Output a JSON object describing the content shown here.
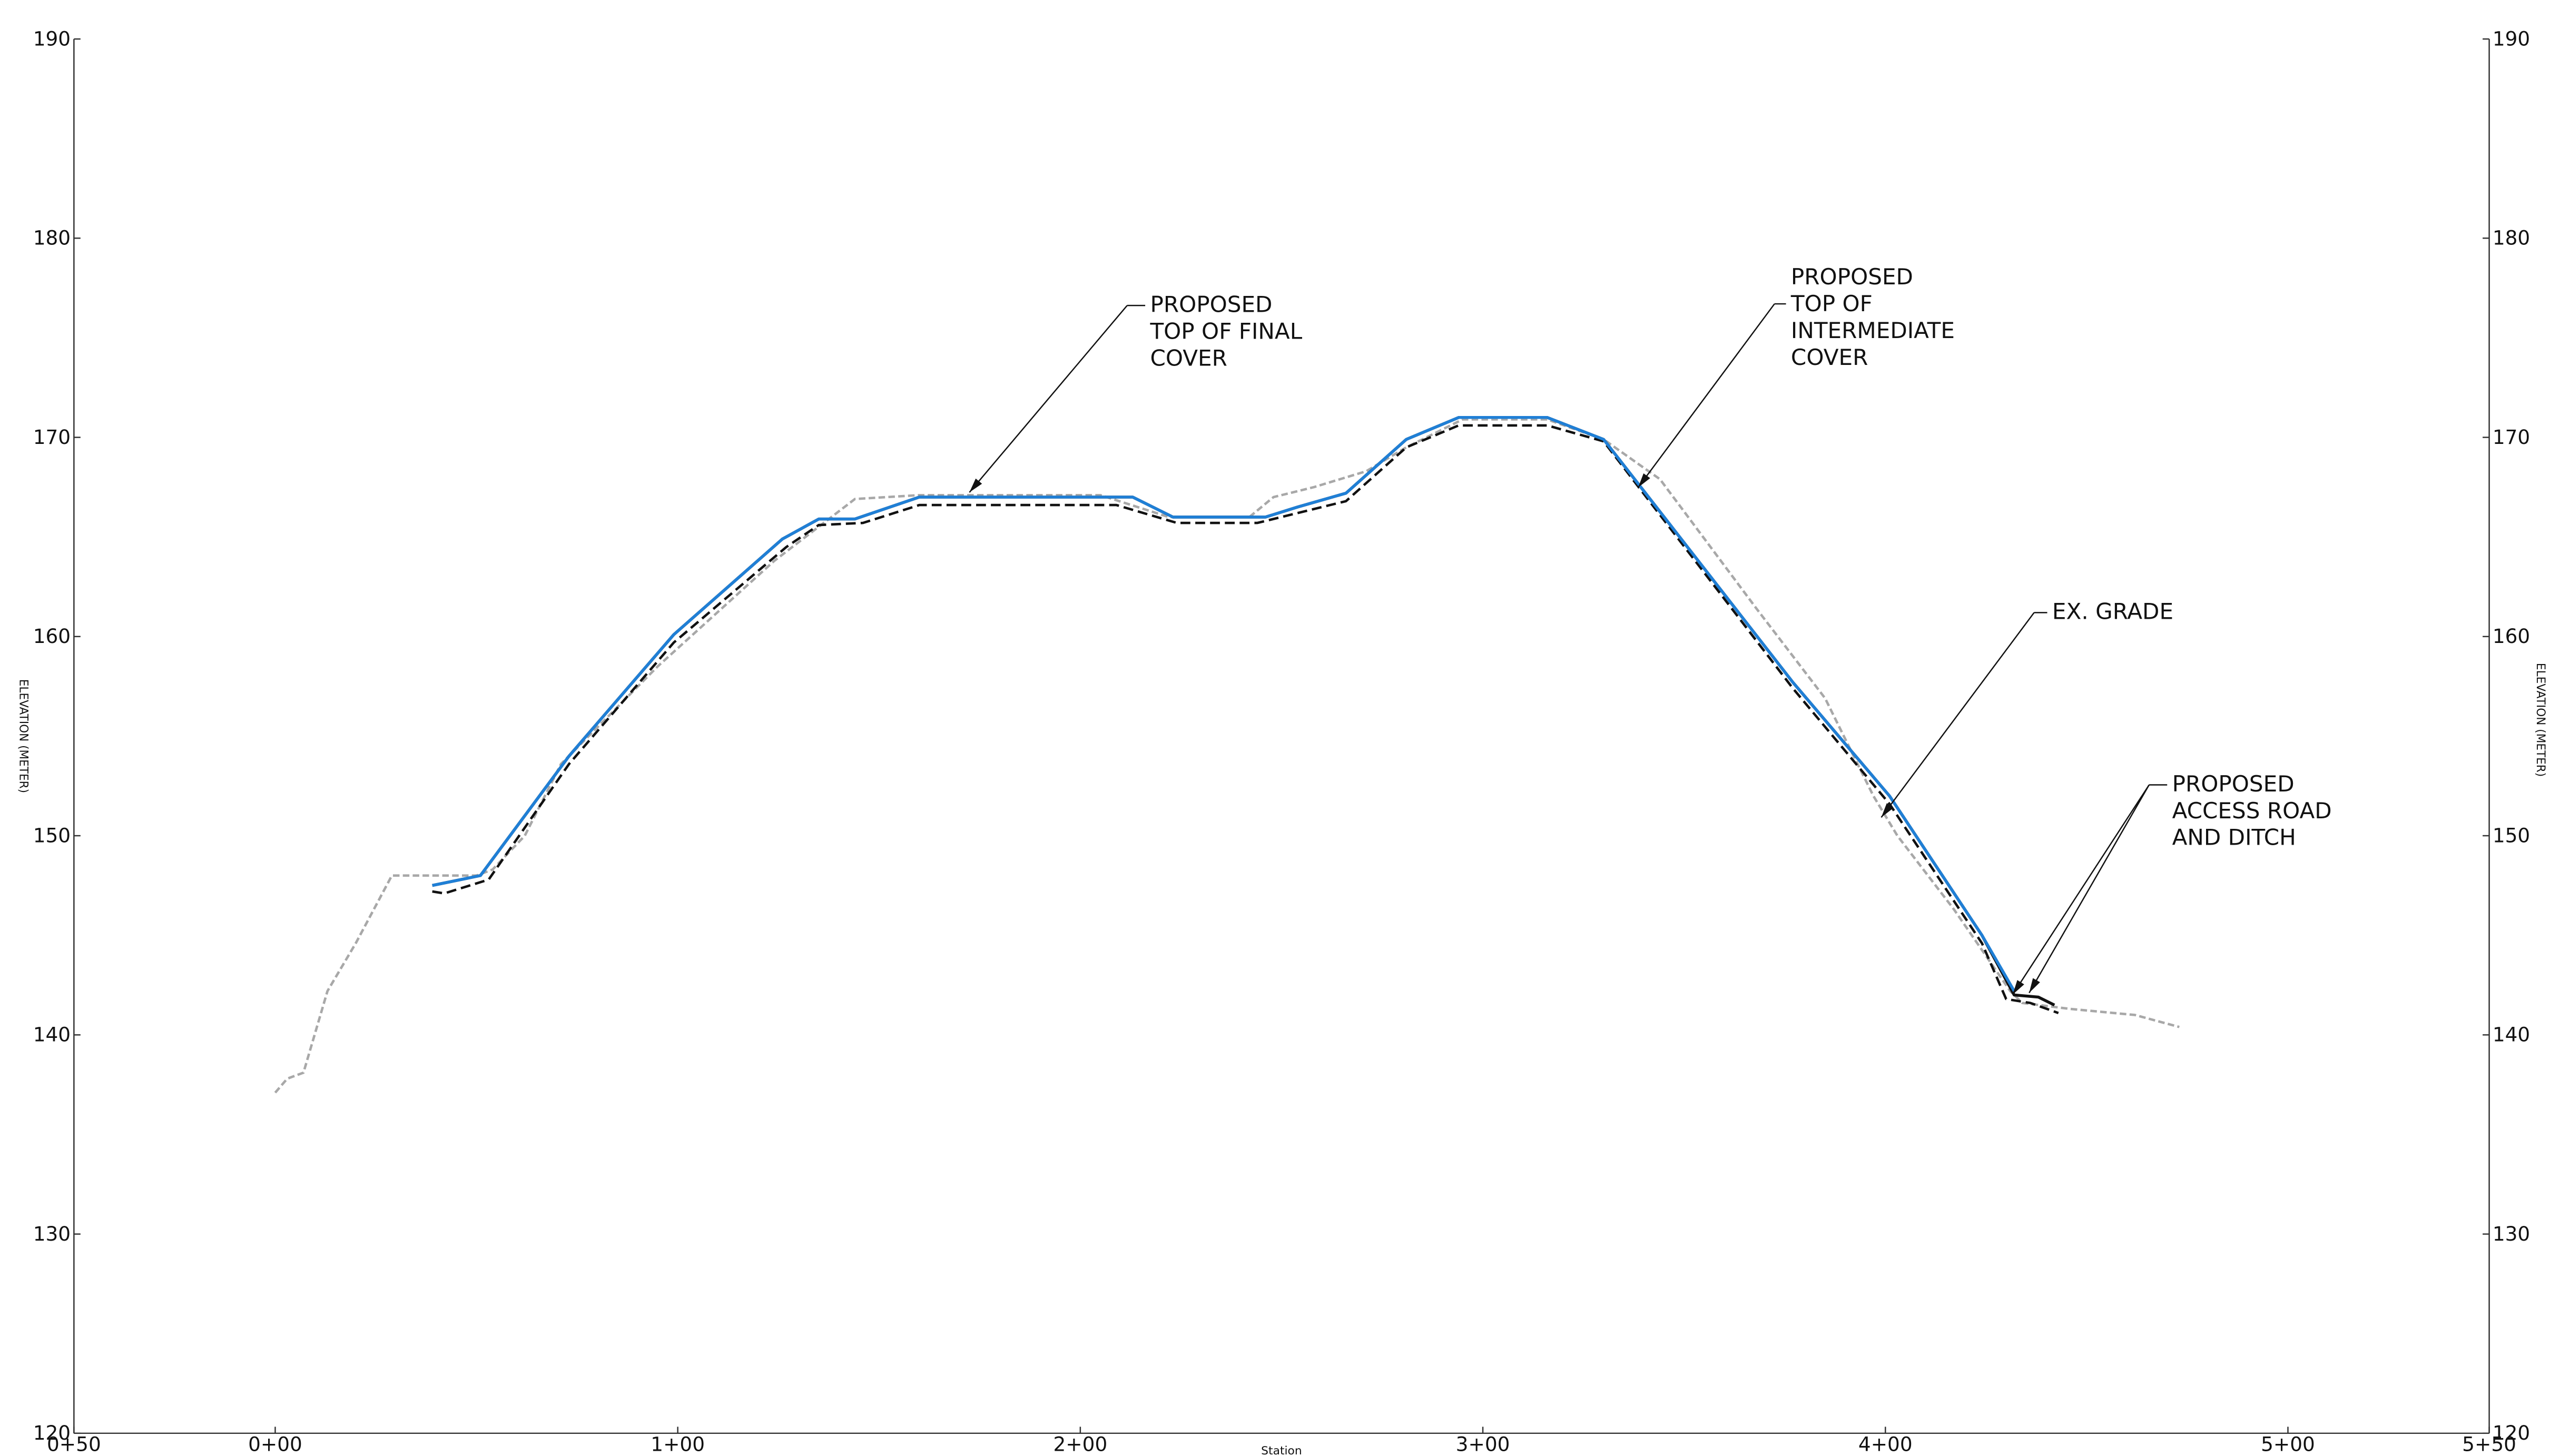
{
  "chart_data": {
    "type": "line",
    "xlabel": "Station",
    "ylabel": "ELEVATION (METER)",
    "y2label": "ELEVATION (METER)",
    "xlim": [
      -50,
      550
    ],
    "xticks": [
      {
        "value": -50,
        "label": "0+50"
      },
      {
        "value": 0,
        "label": "0+00"
      },
      {
        "value": 100,
        "label": "1+00"
      },
      {
        "value": 200,
        "label": "2+00"
      },
      {
        "value": 300,
        "label": "3+00"
      },
      {
        "value": 400,
        "label": "4+00"
      },
      {
        "value": 500,
        "label": "5+00"
      },
      {
        "value": 550,
        "label": "5+50"
      }
    ],
    "ylim": [
      120,
      190
    ],
    "yticks": [
      120,
      130,
      140,
      150,
      160,
      170,
      180,
      190
    ],
    "y2lim": [
      120,
      190
    ],
    "y2ticks": [
      120,
      130,
      140,
      150,
      160,
      170,
      180,
      190
    ],
    "series": [
      {
        "color": "#a8a8a8",
        "dash": "4 2",
        "x": [
          0,
          3,
          7,
          13,
          20,
          29,
          50,
          54,
          62,
          71,
          95,
          124,
          144,
          160,
          205,
          222,
          242,
          248,
          258,
          271,
          281,
          295,
          316,
          330,
          344,
          368,
          385,
          397,
          403,
          417,
          431,
          434,
          446,
          462,
          473
        ],
        "values": [
          137.1,
          137.8,
          138.1,
          142.2,
          144.6,
          148,
          148,
          148.3,
          150,
          153.6,
          158.5,
          163.8,
          166.9,
          167.1,
          167.1,
          166,
          166,
          167,
          167.5,
          168.3,
          169.5,
          170.9,
          170.9,
          169.9,
          167.9,
          161.4,
          156.9,
          152,
          150,
          146.3,
          142.2,
          141.6,
          141.3,
          141,
          140.4
        ]
      },
      {
        "color": "#111111",
        "dash": "6 3",
        "x": [
          39,
          42,
          53,
          73,
          99,
          127,
          135,
          146,
          160,
          209,
          224,
          244,
          254,
          266,
          281,
          294,
          316,
          330,
          377,
          401,
          424,
          430,
          436,
          443
        ],
        "values": [
          147.2,
          147.1,
          147.8,
          153.6,
          159.7,
          164.5,
          165.6,
          165.7,
          166.6,
          166.6,
          165.7,
          165.7,
          166.2,
          166.8,
          169.5,
          170.6,
          170.6,
          169.8,
          157.4,
          151.6,
          144.6,
          141.8,
          141.6,
          141.1
        ]
      },
      {
        "color": "#111111",
        "dash": "none",
        "x": [
          39,
          51,
          73,
          99,
          126,
          135,
          144,
          160,
          213,
          223,
          246,
          254,
          266,
          281,
          294,
          316,
          330,
          377,
          401,
          424,
          432,
          438,
          442
        ],
        "values": [
          147.5,
          148,
          154,
          160.1,
          164.9,
          165.9,
          165.9,
          167,
          167,
          166,
          166,
          166.5,
          167.2,
          169.9,
          171,
          171,
          169.9,
          157.7,
          152,
          145,
          142,
          141.9,
          141.5
        ]
      },
      {
        "color": "#1f7fd6",
        "dash": "none",
        "x": [
          39,
          51,
          73,
          99,
          126,
          135,
          144,
          160,
          213,
          223,
          246,
          254,
          266,
          281,
          294,
          316,
          330,
          377,
          401,
          424,
          432
        ],
        "values": [
          147.5,
          148,
          154,
          160.1,
          164.9,
          165.9,
          165.9,
          167,
          167,
          166,
          166,
          166.5,
          167.2,
          169.9,
          171,
          171,
          169.9,
          157.7,
          152,
          145,
          142.2
        ]
      }
    ],
    "annotations": [
      {
        "lines": [
          "PROPOSED",
          "TOP OF FINAL",
          "COVER"
        ]
      },
      {
        "lines": [
          "PROPOSED",
          "TOP OF",
          "INTERMEDIATE",
          "COVER"
        ]
      },
      {
        "lines": [
          "EX. GRADE"
        ]
      },
      {
        "lines": [
          "PROPOSED",
          "ACCESS ROAD",
          "AND DITCH"
        ]
      }
    ]
  }
}
